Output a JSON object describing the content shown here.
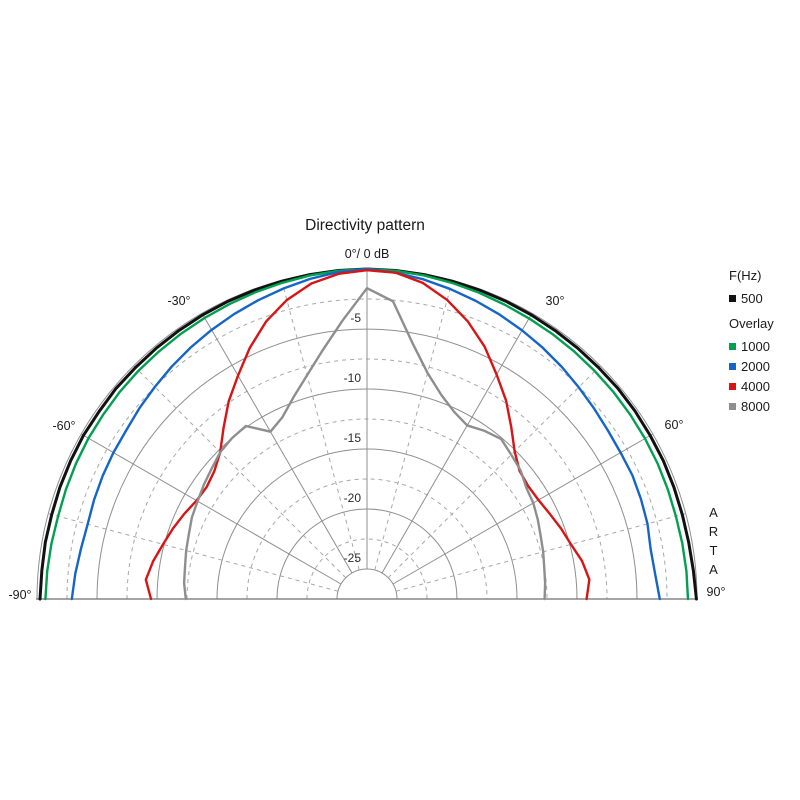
{
  "title": "Directivity pattern",
  "watermark": "ARTA",
  "legend": {
    "header": "F(Hz)",
    "main_item": {
      "label": "500",
      "color": "#111111"
    },
    "overlay_header": "Overlay",
    "overlay_items": [
      {
        "label": "1000",
        "color": "#00a050"
      },
      {
        "label": "2000",
        "color": "#1565c8"
      },
      {
        "label": "4000",
        "color": "#d81414"
      },
      {
        "label": "8000",
        "color": "#8e8e8e"
      }
    ]
  },
  "chart_data": {
    "type": "polar",
    "title": "Directivity pattern",
    "top_label": "0°/ 0 dB",
    "unit": "dB",
    "legend_position": "right",
    "grid": true,
    "angle_labels": [
      "-30°",
      "30°",
      "-60°",
      "60°",
      "-90°",
      "90°"
    ],
    "db_tick_labels": [
      "-5",
      "-10",
      "-15",
      "-20",
      "-25"
    ],
    "db_axis": {
      "max": 0,
      "ring_step": 2.5,
      "solid_ring_step": 5,
      "min_visible_ring": -25,
      "center_db": -27.5
    },
    "angle_axis": {
      "min": -90,
      "max": 90,
      "radial_step": 15,
      "solid_radial_step": 30
    },
    "angles_deg": [
      -90,
      -85,
      -80,
      -75,
      -70,
      -65,
      -60,
      -55,
      -50,
      -45,
      -40,
      -35,
      -30,
      -25,
      -20,
      -15,
      -10,
      -5,
      0,
      5,
      10,
      15,
      20,
      25,
      30,
      35,
      40,
      45,
      50,
      55,
      60,
      65,
      70,
      75,
      80,
      85,
      90
    ],
    "series": [
      {
        "name": "500",
        "color": "#111111",
        "values": [
          -0.25,
          -0.3,
          -0.28,
          -0.3,
          -0.27,
          -0.25,
          -0.22,
          -0.25,
          -0.2,
          -0.22,
          -0.2,
          -0.18,
          -0.15,
          -0.12,
          -0.1,
          -0.08,
          -0.05,
          -0.02,
          0,
          -0.02,
          -0.05,
          -0.08,
          -0.1,
          -0.12,
          -0.15,
          -0.18,
          -0.2,
          -0.22,
          -0.2,
          -0.22,
          -0.25,
          -0.25,
          -0.28,
          -0.3,
          -0.28,
          -0.2,
          -0.05
        ]
      },
      {
        "name": "1000",
        "color": "#00a050",
        "values": [
          -0.7,
          -0.75,
          -0.8,
          -0.85,
          -0.8,
          -0.75,
          -0.7,
          -0.68,
          -0.62,
          -0.58,
          -0.55,
          -0.5,
          -0.45,
          -0.38,
          -0.3,
          -0.22,
          -0.12,
          -0.05,
          0,
          -0.05,
          -0.12,
          -0.22,
          -0.32,
          -0.42,
          -0.5,
          -0.55,
          -0.6,
          -0.65,
          -0.68,
          -0.72,
          -0.75,
          -0.78,
          -0.82,
          -0.85,
          -0.82,
          -0.78,
          -0.75
        ]
      },
      {
        "name": "2000",
        "color": "#1565c8",
        "values": [
          -2.9,
          -3.1,
          -3.3,
          -3.4,
          -3.3,
          -3.2,
          -3.1,
          -3.0,
          -2.75,
          -2.5,
          -2.2,
          -1.9,
          -1.6,
          -1.3,
          -1.0,
          -0.7,
          -0.4,
          -0.15,
          0,
          -0.2,
          -0.45,
          -0.75,
          -1.05,
          -1.35,
          -1.65,
          -1.95,
          -2.25,
          -2.55,
          -2.8,
          -3.0,
          -3.1,
          -3.1,
          -3.2,
          -3.3,
          -3.5,
          -3.4,
          -3.1
        ]
      },
      {
        "name": "4000",
        "color": "#d81414",
        "values": [
          -9.5,
          -9.0,
          -9.4,
          -9.9,
          -10.3,
          -10.7,
          -11.1,
          -11.2,
          -10.9,
          -10.2,
          -8.9,
          -7.4,
          -6.0,
          -4.4,
          -2.9,
          -1.7,
          -0.8,
          -0.3,
          -0.1,
          -0.2,
          -0.75,
          -1.7,
          -2.9,
          -4.3,
          -5.9,
          -7.3,
          -8.8,
          -10.1,
          -10.9,
          -11.1,
          -11.0,
          -10.7,
          -10.3,
          -9.9,
          -9.3,
          -8.9,
          -9.2
        ]
      },
      {
        "name": "8000",
        "color": "#8e8e8e",
        "values": [
          -12.4,
          -12.2,
          -12.1,
          -11.9,
          -11.7,
          -11.4,
          -11.2,
          -10.9,
          -10.6,
          -10.2,
          -10.0,
          -9.9,
          -11.4,
          -10.8,
          -9.6,
          -8.2,
          -6.4,
          -4.2,
          -1.6,
          -2.6,
          -5.8,
          -8.0,
          -9.4,
          -10.3,
          -10.8,
          -10.4,
          -10.1,
          -10.5,
          -10.8,
          -11.3,
          -11.5,
          -11.8,
          -12.1,
          -12.3,
          -12.5,
          -12.6,
          -12.7
        ]
      }
    ]
  }
}
